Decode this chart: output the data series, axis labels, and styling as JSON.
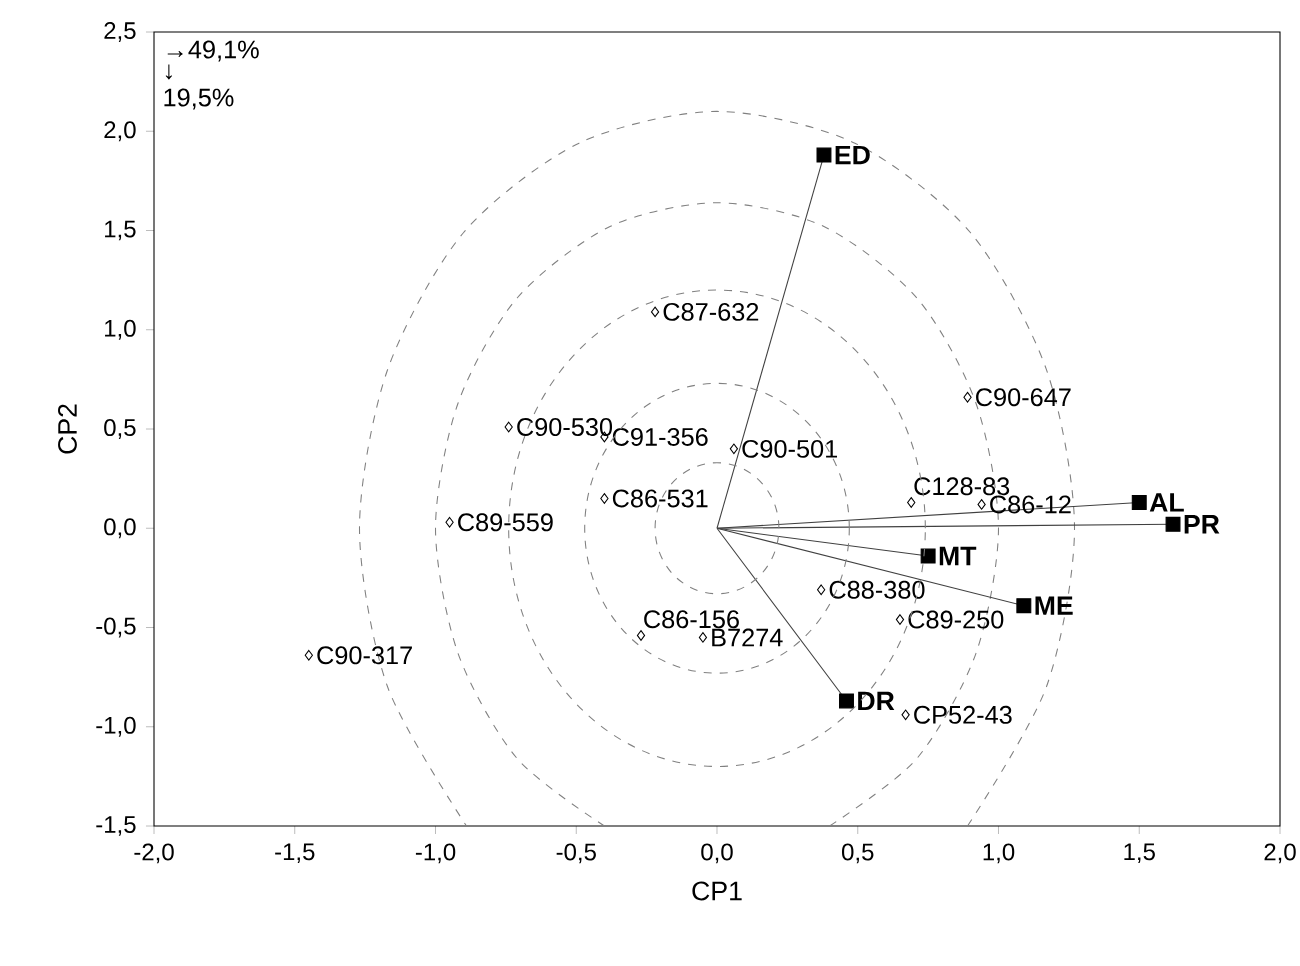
{
  "chart_data": {
    "type": "scatter",
    "xlabel": "CP1",
    "ylabel": "CP2",
    "xlim": [
      -2,
      2
    ],
    "ylim": [
      -1.5,
      2.5
    ],
    "xticks": [
      {
        "value": -2,
        "label": "-2,0"
      },
      {
        "value": -1.5,
        "label": "-1,5"
      },
      {
        "value": -1,
        "label": "-1,0"
      },
      {
        "value": -0.5,
        "label": "-0,5"
      },
      {
        "value": 0,
        "label": "0,0"
      },
      {
        "value": 0.5,
        "label": "0,5"
      },
      {
        "value": 1,
        "label": "1,0"
      },
      {
        "value": 1.5,
        "label": "1,5"
      },
      {
        "value": 2,
        "label": "2,0"
      }
    ],
    "yticks": [
      {
        "value": -1.5,
        "label": "-1,5"
      },
      {
        "value": -1,
        "label": "-1,0"
      },
      {
        "value": -0.5,
        "label": "-0,5"
      },
      {
        "value": 0,
        "label": "0,0"
      },
      {
        "value": 0.5,
        "label": "0,5"
      },
      {
        "value": 1,
        "label": "1,0"
      },
      {
        "value": 1.5,
        "label": "1,5"
      },
      {
        "value": 2,
        "label": "2,0"
      },
      {
        "value": 2.5,
        "label": "2,5"
      }
    ],
    "series": [
      {
        "type": "line",
        "line_style": "dashed",
        "color": "#808080",
        "x": [
          0.4,
          0.71,
          0.92,
          1,
          0.92,
          0.71,
          0.38,
          0,
          -0.38,
          -0.71,
          -0.92,
          -1,
          -0.92,
          -0.71,
          -0.4
        ],
        "values": [
          -1.5,
          -1.16,
          -0.63,
          0,
          0.63,
          1.16,
          1.52,
          1.64,
          1.52,
          1.16,
          0.63,
          0,
          -0.63,
          -1.16,
          -1.5
        ]
      },
      {
        "type": "line",
        "line_style": "dashed",
        "color": "#808080",
        "x": [
          0.89,
          1.17,
          1.27,
          1.17,
          0.9,
          0.49,
          0,
          -0.49,
          -0.9,
          -1.17,
          -1.27,
          -1.17,
          -0.89
        ],
        "values": [
          -1.5,
          -0.8,
          0,
          0.8,
          1.49,
          1.94,
          2.1,
          1.94,
          1.49,
          0.8,
          0,
          -0.8,
          -1.5
        ]
      },
      {
        "type": "line",
        "line_style": "solid",
        "color": "#404040",
        "x": [
          0,
          0.38
        ],
        "values": [
          0,
          1.88
        ]
      },
      {
        "type": "line",
        "line_style": "solid",
        "color": "#404040",
        "x": [
          0,
          1.5
        ],
        "values": [
          0,
          0.13
        ]
      },
      {
        "type": "line",
        "line_style": "solid",
        "color": "#404040",
        "x": [
          0,
          1.62
        ],
        "values": [
          0,
          0.02
        ]
      },
      {
        "type": "line",
        "line_style": "solid",
        "color": "#404040",
        "x": [
          0,
          0.75
        ],
        "values": [
          0,
          -0.14
        ]
      },
      {
        "type": "line",
        "line_style": "solid",
        "color": "#404040",
        "x": [
          0,
          1.09
        ],
        "values": [
          0,
          -0.39
        ]
      },
      {
        "type": "line",
        "line_style": "solid",
        "color": "#404040",
        "x": [
          0,
          0.46
        ],
        "values": [
          0,
          -0.87
        ]
      },
      {
        "marker": "diamond",
        "color": "#000000",
        "x": [
          -0.22,
          -0.74,
          -0.4,
          -0.4,
          -0.95,
          0.06,
          0.89,
          0.69,
          0.94,
          0.37,
          0.65,
          0.67,
          -0.27,
          -0.05,
          -1.45
        ],
        "values": [
          1.09,
          0.51,
          0.46,
          0.15,
          0.03,
          0.4,
          0.66,
          0.13,
          0.12,
          -0.31,
          -0.46,
          -0.94,
          -0.54,
          -0.55,
          -0.64
        ]
      },
      {
        "marker": "square",
        "color": "#000000",
        "x": [
          0.38,
          1.5,
          1.62,
          0.75,
          1.09,
          0.46
        ],
        "values": [
          1.88,
          0.13,
          0.02,
          -0.14,
          -0.39,
          -0.87
        ]
      }
    ],
    "annotations": [
      "→49,1%",
      "↓",
      "19,5%",
      {
        "text": "ED",
        "x": 0.38,
        "y": 1.88
      },
      {
        "text": "AL",
        "x": 1.5,
        "y": 0.13
      },
      {
        "text": "PR",
        "x": 1.62,
        "y": 0.02
      },
      {
        "text": "MT",
        "x": 0.75,
        "y": -0.14
      },
      {
        "text": "ME",
        "x": 1.09,
        "y": -0.39
      },
      {
        "text": "DR",
        "x": 0.46,
        "y": -0.87
      },
      {
        "text": "C87-632",
        "x": -0.22,
        "y": 1.09
      },
      {
        "text": "C90-530",
        "x": -0.74,
        "y": 0.51
      },
      {
        "text": "C91-356",
        "x": -0.4,
        "y": 0.46
      },
      {
        "text": "C86-531",
        "x": -0.4,
        "y": 0.15
      },
      {
        "text": "C89-559",
        "x": -0.95,
        "y": 0.03
      },
      {
        "text": "C90-501",
        "x": 0.06,
        "y": 0.4
      },
      {
        "text": "C90-647",
        "x": 0.89,
        "y": 0.66
      },
      {
        "text": "C128-83",
        "x": 0.69,
        "y": 0.13
      },
      {
        "text": "C86-12",
        "x": 0.94,
        "y": 0.12
      },
      {
        "text": "C88-380",
        "x": 0.37,
        "y": -0.31
      },
      {
        "text": "C89-250",
        "x": 0.65,
        "y": -0.46
      },
      {
        "text": "CP52-43",
        "x": 0.67,
        "y": -0.94
      },
      {
        "text": "C86-156",
        "x": -0.27,
        "y": -0.54
      },
      {
        "text": "B7274",
        "x": -0.05,
        "y": -0.55
      },
      {
        "text": "C90-317",
        "x": -1.45,
        "y": -0.64
      }
    ]
  }
}
